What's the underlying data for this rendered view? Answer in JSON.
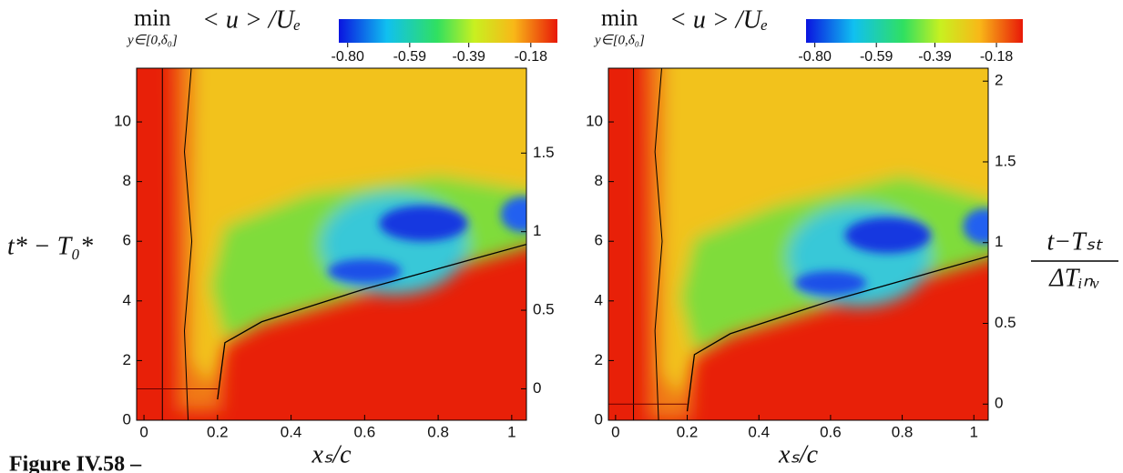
{
  "chart_data": [
    {
      "type": "contour",
      "colorbar": {
        "main": "min",
        "sub": "y∈[0,δ₀]",
        "expr": "< u > /Uₑ",
        "lim": [
          -0.83,
          -0.09
        ],
        "ticks": [
          {
            "value": -0.8,
            "label": "-0.80"
          },
          -0.59,
          -0.39,
          -0.18
        ]
      },
      "xlabel": "xₛ/c",
      "ylabel": "t* − T₀*",
      "xlim": [
        -0.02,
        1.04
      ],
      "xticks": [
        0,
        0.2,
        0.4,
        0.6,
        0.8,
        1
      ],
      "ylim": [
        0,
        11.8
      ],
      "yticks": [
        0,
        2,
        4,
        6,
        8,
        10
      ],
      "y2lim": [
        -0.2,
        2.04
      ],
      "y2ticks": [
        0,
        0.5,
        1,
        1.5
      ]
    },
    {
      "type": "contour",
      "colorbar": {
        "main": "min",
        "sub": "y∈[0,δ₀]",
        "expr": "< u > /Uₑ",
        "lim": [
          -0.83,
          -0.09
        ],
        "ticks": [
          {
            "value": -0.8,
            "label": "-0.80"
          },
          -0.59,
          -0.39,
          -0.18
        ]
      },
      "xlabel": "xₛ/c",
      "y2label": {
        "num": "t−Tₛₜ",
        "den": "ΔTᵢₙᵥ"
      },
      "xlim": [
        -0.02,
        1.04
      ],
      "xticks": [
        0,
        0.2,
        0.4,
        0.6,
        0.8,
        1
      ],
      "ylim": [
        0,
        11.8
      ],
      "yticks": [
        0,
        2,
        4,
        6,
        8,
        10
      ],
      "y2lim": [
        -0.1,
        2.08
      ],
      "y2ticks": [
        0,
        0.5,
        1,
        1.5,
        2
      ]
    }
  ],
  "caption": "Figure IV.58 –"
}
